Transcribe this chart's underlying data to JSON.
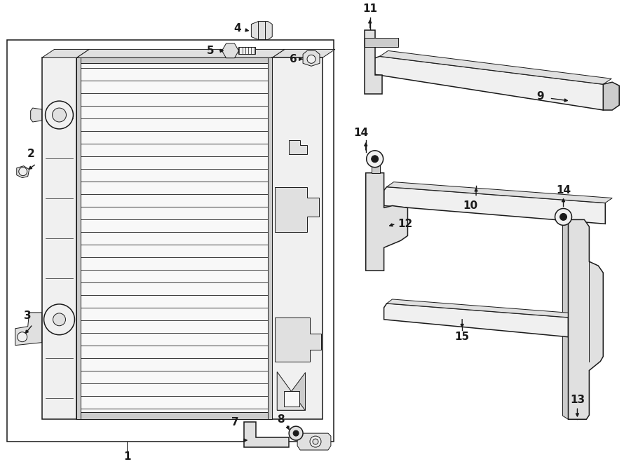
{
  "bg_color": "#ffffff",
  "line_color": "#1a1a1a",
  "fig_width": 9.0,
  "fig_height": 6.62,
  "lw_thin": 0.7,
  "lw_med": 1.1,
  "lw_thick": 1.5,
  "fill_light": "#f0f0f0",
  "fill_mid": "#e0e0e0",
  "fill_dark": "#cccccc"
}
